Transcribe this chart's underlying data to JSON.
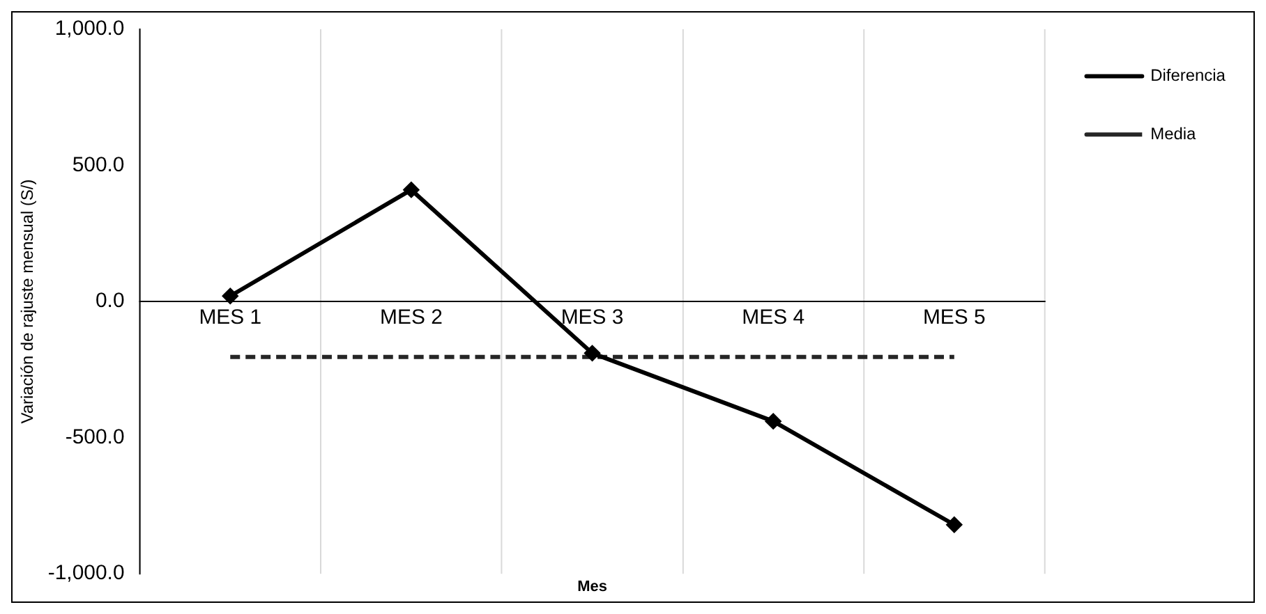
{
  "chart_data": {
    "type": "line",
    "xlabel": "Mes",
    "ylabel": "Variación de rajuste mensual (S/)",
    "categories": [
      "MES 1",
      "MES 2",
      "MES 3",
      "MES 4",
      "MES 5"
    ],
    "series": [
      {
        "name": "Diferencia",
        "color": "#000000",
        "values": [
          20,
          410,
          -190,
          -440,
          -820
        ],
        "marker": "diamond",
        "line_style": "solid"
      },
      {
        "name": "Media",
        "color": "#262626",
        "values": [
          -204,
          -204,
          -204,
          -204,
          -204
        ],
        "marker": "none",
        "line_style": "dashed"
      }
    ],
    "ylim": [
      -1000,
      1000
    ],
    "yticks": [
      {
        "value": -1000,
        "label": "-1,000.0"
      },
      {
        "value": -500,
        "label": "-500.0"
      },
      {
        "value": 0,
        "label": "0.0"
      },
      {
        "value": 500,
        "label": "500.0"
      },
      {
        "value": 1000,
        "label": "1,000.0"
      }
    ],
    "grid": "x",
    "legend": "top right"
  }
}
